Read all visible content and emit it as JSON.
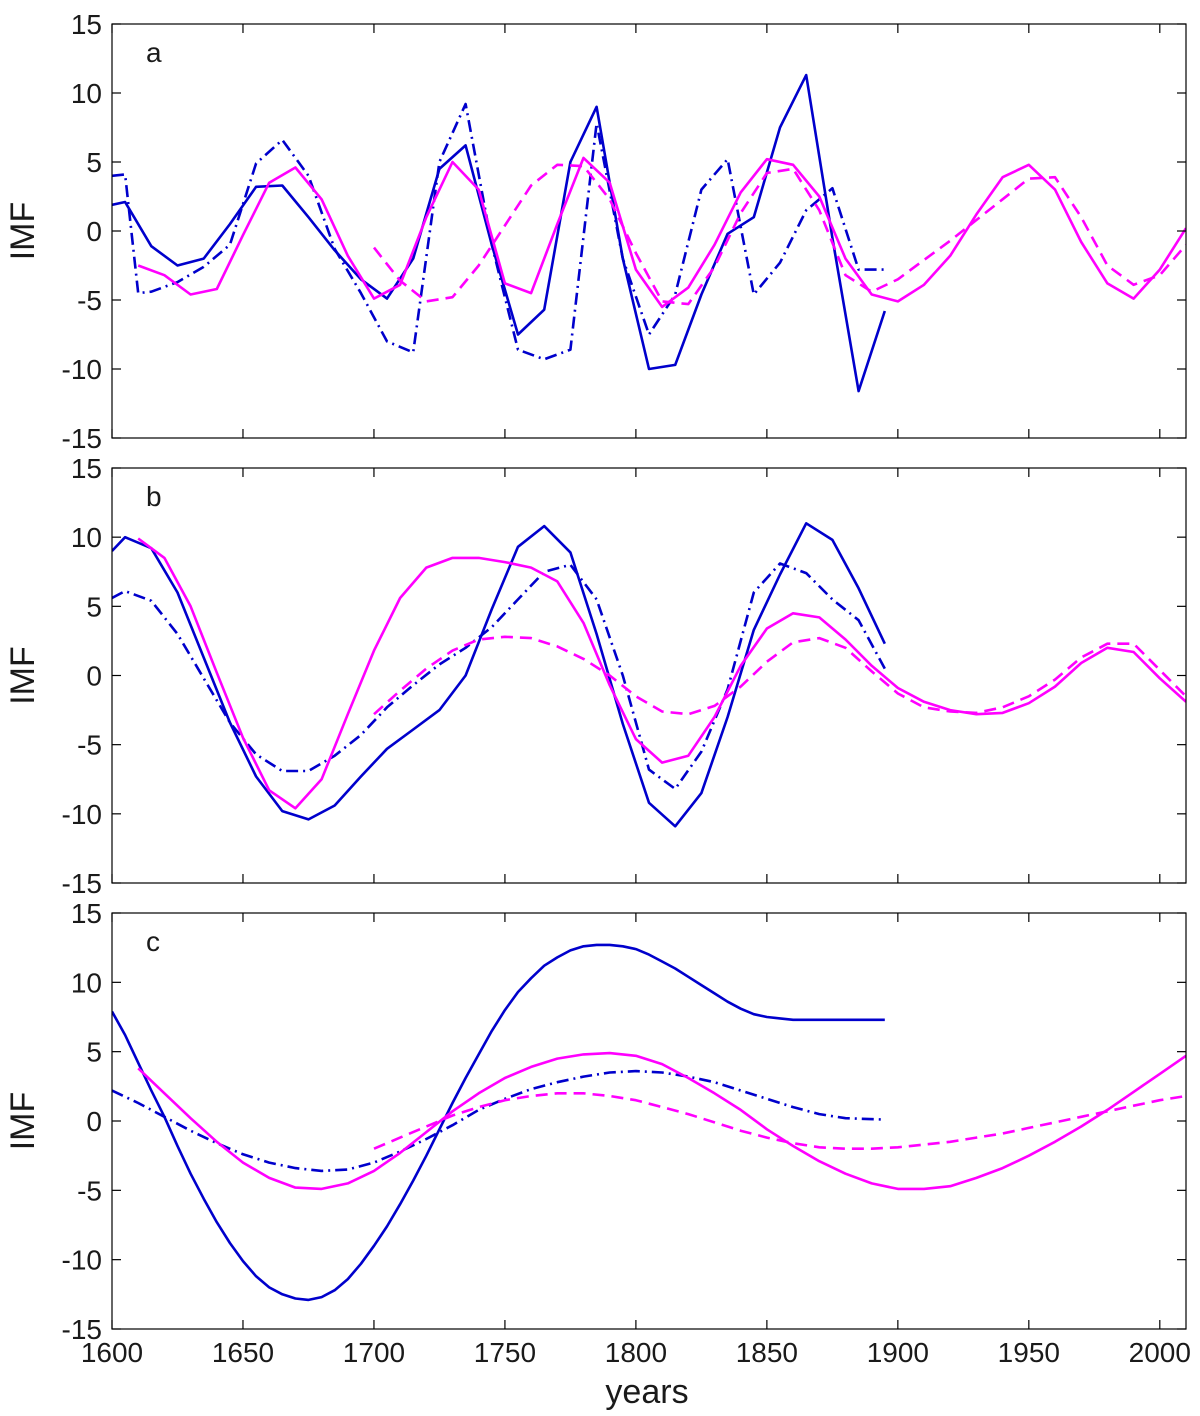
{
  "xlabel": "years",
  "chart_data": [
    {
      "type": "line",
      "panel_label": "a",
      "ylabel": "IMF",
      "xlim": [
        1600,
        2010
      ],
      "ylim": [
        -15,
        15
      ],
      "yticks": [
        -15,
        -10,
        -5,
        0,
        5,
        10,
        15
      ],
      "series": [
        {
          "style": "solid",
          "color": "#0000cc",
          "x": [
            1600,
            1605,
            1615,
            1625,
            1635,
            1645,
            1655,
            1665,
            1675,
            1685,
            1695,
            1705,
            1715,
            1725,
            1735,
            1745,
            1755,
            1765,
            1775,
            1785,
            1795,
            1805,
            1815,
            1825,
            1835,
            1845,
            1855,
            1865,
            1875,
            1885,
            1895
          ],
          "y": [
            1.9,
            2.1,
            -1.1,
            -2.5,
            -2.0,
            0.5,
            3.2,
            3.3,
            1.0,
            -1.4,
            -3.5,
            -4.9,
            -2.0,
            4.5,
            6.2,
            -1.0,
            -7.5,
            -5.7,
            5.0,
            9.0,
            -2.0,
            -10.0,
            -9.7,
            -4.6,
            -0.2,
            1.0,
            7.5,
            11.3,
            -0.5,
            -11.6,
            -5.8
          ]
        },
        {
          "style": "dashdot",
          "color": "#0000cc",
          "x": [
            1600,
            1605,
            1610,
            1615,
            1625,
            1635,
            1645,
            1655,
            1665,
            1675,
            1685,
            1695,
            1705,
            1715,
            1725,
            1735,
            1745,
            1755,
            1765,
            1775,
            1785,
            1795,
            1805,
            1815,
            1825,
            1835,
            1845,
            1855,
            1865,
            1875,
            1885,
            1895
          ],
          "y": [
            4.0,
            4.1,
            -4.5,
            -4.4,
            -3.7,
            -2.6,
            -1.0,
            4.9,
            6.6,
            4.0,
            -1.3,
            -4.5,
            -8.0,
            -8.8,
            5.0,
            9.2,
            -1.0,
            -8.6,
            -9.3,
            -8.6,
            7.8,
            -2.0,
            -7.5,
            -4.6,
            3.0,
            5.2,
            -4.6,
            -2.3,
            1.5,
            3.1,
            -2.8,
            -2.8
          ]
        },
        {
          "style": "solid",
          "color": "#ff00ff",
          "x": [
            1610,
            1620,
            1630,
            1640,
            1650,
            1660,
            1670,
            1680,
            1690,
            1700,
            1710,
            1720,
            1730,
            1740,
            1750,
            1760,
            1770,
            1780,
            1790,
            1800,
            1810,
            1820,
            1830,
            1840,
            1850,
            1860,
            1870,
            1880,
            1890,
            1900,
            1910,
            1920,
            1930,
            1940,
            1950,
            1960,
            1970,
            1980,
            1990,
            2000,
            2010
          ],
          "y": [
            -2.5,
            -3.2,
            -4.6,
            -4.2,
            -0.3,
            3.5,
            4.6,
            2.3,
            -1.8,
            -4.9,
            -3.9,
            1.0,
            5.0,
            3.0,
            -3.8,
            -4.5,
            0.5,
            5.3,
            3.5,
            -2.8,
            -5.5,
            -4.1,
            -1.0,
            2.8,
            5.2,
            4.8,
            2.5,
            -2.0,
            -4.6,
            -5.1,
            -3.9,
            -1.8,
            1.2,
            3.9,
            4.8,
            3.0,
            -0.8,
            -3.8,
            -4.9,
            -2.8,
            0.2
          ]
        },
        {
          "style": "dashed",
          "color": "#ff00ff",
          "x": [
            1700,
            1710,
            1720,
            1730,
            1740,
            1750,
            1760,
            1770,
            1780,
            1790,
            1800,
            1810,
            1820,
            1830,
            1840,
            1850,
            1860,
            1870,
            1880,
            1890,
            1900,
            1910,
            1920,
            1930,
            1940,
            1950,
            1960,
            1970,
            1980,
            1990,
            2000,
            2010
          ],
          "y": [
            -1.2,
            -3.6,
            -5.1,
            -4.8,
            -2.5,
            0.4,
            3.3,
            4.8,
            4.7,
            2.3,
            -1.6,
            -5.1,
            -5.3,
            -2.6,
            1.3,
            4.2,
            4.5,
            1.5,
            -3.2,
            -4.4,
            -3.5,
            -2.1,
            -0.7,
            0.8,
            2.3,
            3.8,
            3.9,
            1.0,
            -2.5,
            -3.9,
            -3.2,
            -1.0
          ]
        }
      ]
    },
    {
      "type": "line",
      "panel_label": "b",
      "ylabel": "IMF",
      "xlim": [
        1600,
        2010
      ],
      "ylim": [
        -15,
        15
      ],
      "yticks": [
        -15,
        -10,
        -5,
        0,
        5,
        10,
        15
      ],
      "series": [
        {
          "style": "solid",
          "color": "#0000cc",
          "x": [
            1600,
            1605,
            1615,
            1625,
            1635,
            1645,
            1655,
            1665,
            1675,
            1685,
            1695,
            1705,
            1715,
            1725,
            1735,
            1745,
            1755,
            1765,
            1775,
            1785,
            1795,
            1805,
            1815,
            1825,
            1835,
            1845,
            1855,
            1865,
            1875,
            1885,
            1895
          ],
          "y": [
            9.0,
            10.0,
            9.2,
            6.0,
            1.3,
            -3.4,
            -7.3,
            -9.8,
            -10.4,
            -9.4,
            -7.3,
            -5.3,
            -3.9,
            -2.5,
            0.0,
            4.8,
            9.3,
            10.8,
            8.9,
            3.0,
            -3.5,
            -9.2,
            -10.9,
            -8.5,
            -3.0,
            3.3,
            7.3,
            11.0,
            9.8,
            6.3,
            2.3
          ]
        },
        {
          "style": "dashdot",
          "color": "#0000cc",
          "x": [
            1600,
            1605,
            1615,
            1625,
            1635,
            1645,
            1655,
            1665,
            1675,
            1685,
            1695,
            1705,
            1715,
            1725,
            1735,
            1745,
            1755,
            1765,
            1775,
            1785,
            1795,
            1805,
            1815,
            1825,
            1835,
            1845,
            1855,
            1865,
            1875,
            1885,
            1895
          ],
          "y": [
            5.6,
            6.1,
            5.4,
            3.0,
            -0.2,
            -3.4,
            -5.7,
            -6.9,
            -6.9,
            -5.8,
            -4.3,
            -2.3,
            -0.7,
            0.8,
            2.0,
            3.5,
            5.5,
            7.5,
            8.0,
            5.5,
            0.0,
            -6.8,
            -8.2,
            -5.5,
            -1.0,
            6.0,
            8.1,
            7.4,
            5.5,
            4.0,
            0.5
          ]
        },
        {
          "style": "solid",
          "color": "#ff00ff",
          "x": [
            1610,
            1620,
            1630,
            1640,
            1650,
            1660,
            1670,
            1680,
            1690,
            1700,
            1710,
            1720,
            1730,
            1740,
            1750,
            1760,
            1770,
            1780,
            1790,
            1800,
            1810,
            1820,
            1830,
            1840,
            1850,
            1860,
            1870,
            1880,
            1890,
            1900,
            1910,
            1920,
            1930,
            1940,
            1950,
            1960,
            1970,
            1980,
            1990,
            2000,
            2010
          ],
          "y": [
            9.9,
            8.5,
            5.0,
            0.2,
            -4.5,
            -8.3,
            -9.6,
            -7.5,
            -2.8,
            1.8,
            5.6,
            7.8,
            8.5,
            8.5,
            8.2,
            7.8,
            6.8,
            3.8,
            -0.7,
            -4.6,
            -6.3,
            -5.8,
            -3.0,
            0.7,
            3.4,
            4.5,
            4.2,
            2.6,
            0.7,
            -0.9,
            -1.9,
            -2.5,
            -2.8,
            -2.7,
            -2.0,
            -0.8,
            0.9,
            2.0,
            1.7,
            -0.2,
            -1.9
          ]
        },
        {
          "style": "dashed",
          "color": "#ff00ff",
          "x": [
            1700,
            1710,
            1720,
            1730,
            1740,
            1750,
            1760,
            1770,
            1780,
            1790,
            1800,
            1810,
            1820,
            1830,
            1840,
            1850,
            1860,
            1870,
            1880,
            1890,
            1900,
            1910,
            1920,
            1930,
            1940,
            1950,
            1960,
            1970,
            1980,
            1990,
            2000,
            2010
          ],
          "y": [
            -2.8,
            -1.1,
            0.5,
            1.8,
            2.6,
            2.8,
            2.7,
            2.1,
            1.2,
            0.0,
            -1.5,
            -2.6,
            -2.8,
            -2.2,
            -0.8,
            1.0,
            2.4,
            2.7,
            2.0,
            0.3,
            -1.3,
            -2.3,
            -2.6,
            -2.7,
            -2.3,
            -1.5,
            -0.3,
            1.3,
            2.3,
            2.3,
            0.4,
            -1.5
          ]
        }
      ]
    },
    {
      "type": "line",
      "panel_label": "c",
      "ylabel": "IMF",
      "xlim": [
        1600,
        2010
      ],
      "ylim": [
        -15,
        15
      ],
      "xticks": [
        1600,
        1650,
        1700,
        1750,
        1800,
        1850,
        1900,
        1950,
        2000
      ],
      "yticks": [
        -15,
        -10,
        -5,
        0,
        5,
        10,
        15
      ],
      "series": [
        {
          "style": "solid",
          "color": "#0000cc",
          "x": [
            1600,
            1605,
            1610,
            1615,
            1620,
            1625,
            1630,
            1635,
            1640,
            1645,
            1650,
            1655,
            1660,
            1665,
            1670,
            1675,
            1680,
            1685,
            1690,
            1695,
            1700,
            1705,
            1710,
            1715,
            1720,
            1725,
            1730,
            1735,
            1740,
            1745,
            1750,
            1755,
            1760,
            1765,
            1770,
            1775,
            1780,
            1785,
            1790,
            1795,
            1800,
            1805,
            1810,
            1815,
            1820,
            1825,
            1830,
            1835,
            1840,
            1845,
            1850,
            1855,
            1860,
            1865,
            1870,
            1875,
            1880,
            1885,
            1890,
            1895
          ],
          "y": [
            7.9,
            6.2,
            4.2,
            2.2,
            0.3,
            -1.8,
            -3.8,
            -5.6,
            -7.3,
            -8.8,
            -10.1,
            -11.2,
            -12.0,
            -12.5,
            -12.8,
            -12.9,
            -12.7,
            -12.2,
            -11.4,
            -10.3,
            -9.0,
            -7.6,
            -6.0,
            -4.3,
            -2.5,
            -0.6,
            1.3,
            3.1,
            4.8,
            6.5,
            8.0,
            9.3,
            10.3,
            11.2,
            11.8,
            12.3,
            12.6,
            12.7,
            12.7,
            12.6,
            12.4,
            12.0,
            11.5,
            11.0,
            10.4,
            9.8,
            9.2,
            8.6,
            8.1,
            7.7,
            7.5,
            7.4,
            7.3,
            7.3,
            7.3,
            7.3,
            7.3,
            7.3,
            7.3,
            7.3
          ]
        },
        {
          "style": "dashdot",
          "color": "#0000cc",
          "x": [
            1600,
            1610,
            1620,
            1630,
            1640,
            1650,
            1660,
            1670,
            1680,
            1690,
            1700,
            1710,
            1720,
            1730,
            1740,
            1750,
            1760,
            1770,
            1780,
            1790,
            1800,
            1810,
            1820,
            1830,
            1840,
            1850,
            1860,
            1870,
            1880,
            1895
          ],
          "y": [
            2.2,
            1.3,
            0.3,
            -0.7,
            -1.6,
            -2.4,
            -3.0,
            -3.4,
            -3.6,
            -3.5,
            -3.0,
            -2.2,
            -1.3,
            -0.3,
            0.8,
            1.6,
            2.3,
            2.8,
            3.2,
            3.5,
            3.6,
            3.5,
            3.2,
            2.8,
            2.2,
            1.6,
            1.0,
            0.5,
            0.2,
            0.1
          ]
        },
        {
          "style": "solid",
          "color": "#ff00ff",
          "x": [
            1610,
            1620,
            1630,
            1640,
            1650,
            1660,
            1670,
            1680,
            1690,
            1700,
            1710,
            1720,
            1730,
            1740,
            1750,
            1760,
            1770,
            1780,
            1790,
            1800,
            1810,
            1820,
            1830,
            1840,
            1850,
            1860,
            1870,
            1880,
            1890,
            1900,
            1910,
            1920,
            1930,
            1940,
            1950,
            1960,
            1970,
            1980,
            1990,
            2000,
            2010
          ],
          "y": [
            3.8,
            2.0,
            0.2,
            -1.5,
            -3.0,
            -4.1,
            -4.8,
            -4.9,
            -4.5,
            -3.6,
            -2.3,
            -0.8,
            0.7,
            2.0,
            3.1,
            3.9,
            4.5,
            4.8,
            4.9,
            4.7,
            4.1,
            3.1,
            2.0,
            0.8,
            -0.6,
            -1.8,
            -2.9,
            -3.8,
            -4.5,
            -4.9,
            -4.9,
            -4.7,
            -4.1,
            -3.4,
            -2.5,
            -1.5,
            -0.4,
            0.8,
            2.1,
            3.4,
            4.7
          ]
        },
        {
          "style": "dashed",
          "color": "#ff00ff",
          "x": [
            1700,
            1710,
            1720,
            1730,
            1740,
            1750,
            1760,
            1770,
            1780,
            1790,
            1800,
            1810,
            1820,
            1830,
            1840,
            1850,
            1860,
            1870,
            1880,
            1890,
            1900,
            1910,
            1920,
            1930,
            1940,
            1950,
            1960,
            1970,
            1980,
            1990,
            2000,
            2010
          ],
          "y": [
            -2.0,
            -1.2,
            -0.4,
            0.4,
            1.0,
            1.5,
            1.8,
            2.0,
            2.0,
            1.8,
            1.5,
            1.0,
            0.5,
            -0.1,
            -0.7,
            -1.2,
            -1.6,
            -1.9,
            -2.0,
            -2.0,
            -1.9,
            -1.7,
            -1.5,
            -1.2,
            -0.9,
            -0.5,
            -0.1,
            0.3,
            0.7,
            1.1,
            1.5,
            1.8
          ]
        }
      ]
    }
  ]
}
